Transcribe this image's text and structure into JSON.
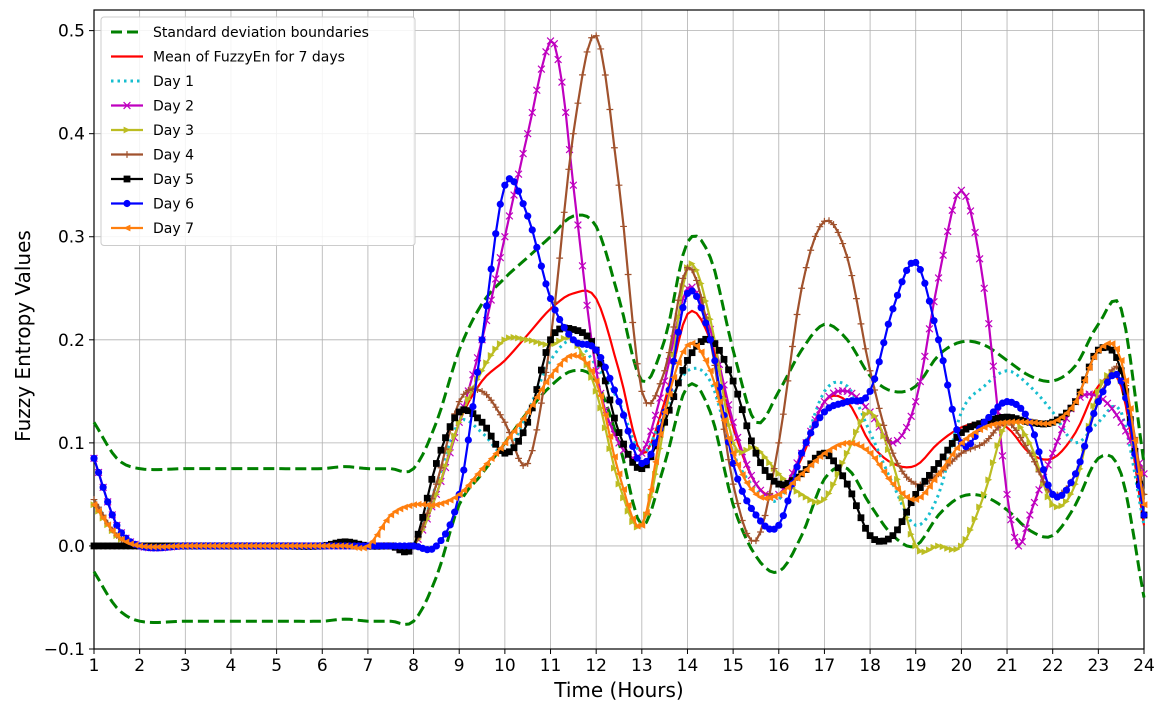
{
  "chart_data": {
    "type": "line",
    "title": "",
    "xlabel": "Time (Hours)",
    "ylabel": "Fuzzy Entropy Values",
    "xlim": [
      1,
      24
    ],
    "ylim": [
      -0.1,
      0.52
    ],
    "x_ticks": [
      1,
      2,
      3,
      4,
      5,
      6,
      7,
      8,
      9,
      10,
      11,
      12,
      13,
      14,
      15,
      16,
      17,
      18,
      19,
      20,
      21,
      22,
      23,
      24
    ],
    "y_ticks": [
      -0.1,
      0.0,
      0.1,
      0.2,
      0.3,
      0.4,
      0.5
    ],
    "y_tick_labels": [
      "−0.1",
      "0.0",
      "0.1",
      "0.2",
      "0.3",
      "0.4",
      "0.5"
    ],
    "grid": true,
    "legend_position": "top-left",
    "series": [
      {
        "name": "Standard deviation boundaries",
        "color": "#008000",
        "style": "dashed",
        "marker": "none",
        "x": [
          1,
          1.5,
          2,
          3,
          4,
          5,
          6,
          6.5,
          7,
          7.5,
          8,
          8.5,
          9,
          9.5,
          10,
          10.5,
          11,
          11.5,
          12,
          12.5,
          13,
          13.5,
          14,
          14.5,
          15,
          15.5,
          16,
          16.5,
          17,
          17.5,
          18,
          18.5,
          19,
          19.5,
          20,
          20.5,
          21,
          21.5,
          22,
          22.5,
          23,
          23.5,
          24
        ],
        "y": [
          0.12,
          0.085,
          0.075,
          0.075,
          0.075,
          0.075,
          0.075,
          0.077,
          0.075,
          0.075,
          0.075,
          0.12,
          0.19,
          0.235,
          0.26,
          0.28,
          0.3,
          0.32,
          0.31,
          0.24,
          0.16,
          0.2,
          0.295,
          0.28,
          0.19,
          0.12,
          0.15,
          0.19,
          0.215,
          0.2,
          0.165,
          0.15,
          0.155,
          0.185,
          0.198,
          0.195,
          0.18,
          0.165,
          0.16,
          0.175,
          0.215,
          0.23,
          0.08
        ]
      },
      {
        "name": "",
        "color": "#008000",
        "style": "dashed",
        "marker": "none",
        "x": [
          1,
          1.5,
          2,
          3,
          4,
          5,
          6,
          6.5,
          7,
          7.5,
          8,
          8.5,
          9,
          9.5,
          10,
          10.5,
          11,
          11.5,
          12,
          12.5,
          13,
          13.5,
          14,
          14.5,
          15,
          15.5,
          16,
          16.5,
          17,
          17.5,
          18,
          18.5,
          19,
          19.5,
          20,
          20.5,
          21,
          21.5,
          22,
          22.5,
          23,
          23.5,
          24
        ],
        "y": [
          -0.025,
          -0.06,
          -0.073,
          -0.073,
          -0.073,
          -0.073,
          -0.073,
          -0.071,
          -0.073,
          -0.073,
          -0.073,
          -0.03,
          0.04,
          0.07,
          0.1,
          0.13,
          0.155,
          0.17,
          0.16,
          0.1,
          0.02,
          0.08,
          0.155,
          0.13,
          0.04,
          -0.01,
          -0.025,
          0.01,
          0.065,
          0.075,
          0.04,
          0.01,
          0.0,
          0.03,
          0.048,
          0.048,
          0.035,
          0.015,
          0.01,
          0.04,
          0.085,
          0.07,
          -0.05
        ]
      },
      {
        "name": "Mean of FuzzyEn for 7 days",
        "color": "#ff0000",
        "style": "solid",
        "marker": "none",
        "x": [
          1,
          1.5,
          2,
          3,
          4,
          5,
          6,
          6.5,
          7,
          7.5,
          8,
          8.5,
          9,
          9.5,
          10,
          10.5,
          11,
          11.5,
          12,
          12.5,
          13,
          13.5,
          14,
          14.5,
          15,
          15.5,
          16,
          16.5,
          17,
          17.5,
          18,
          18.5,
          19,
          19.5,
          20,
          20.5,
          21,
          21.5,
          22,
          22.5,
          23,
          23.5,
          24
        ],
        "y": [
          0.045,
          0.01,
          0.0,
          0.0,
          0.0,
          0.0,
          0.0,
          0.002,
          0.0,
          0.0,
          0.0,
          0.05,
          0.12,
          0.16,
          0.18,
          0.205,
          0.23,
          0.245,
          0.24,
          0.17,
          0.09,
          0.14,
          0.225,
          0.2,
          0.115,
          0.06,
          0.05,
          0.085,
          0.14,
          0.14,
          0.1,
          0.08,
          0.078,
          0.1,
          0.115,
          0.12,
          0.115,
          0.09,
          0.085,
          0.11,
          0.155,
          0.155,
          0.02
        ]
      },
      {
        "name": "Day 1",
        "color": "#17becf",
        "style": "dotted",
        "marker": "none",
        "x": [
          1,
          1.5,
          2,
          3,
          4,
          5,
          6,
          6.5,
          7,
          7.5,
          8,
          8.5,
          9,
          9.5,
          10,
          10.5,
          11,
          11.5,
          12,
          12.5,
          13,
          13.5,
          14,
          14.5,
          15,
          15.5,
          16,
          16.5,
          17,
          17.5,
          18,
          18.5,
          19,
          19.5,
          20,
          20.5,
          21,
          21.5,
          22,
          22.5,
          23,
          23.5,
          24
        ],
        "y": [
          0.045,
          0.01,
          0.0,
          0.0,
          0.0,
          0.0,
          0.0,
          0.0,
          0.0,
          0.0,
          0.0,
          0.06,
          0.12,
          0.11,
          0.09,
          0.13,
          0.18,
          0.2,
          0.175,
          0.14,
          0.09,
          0.13,
          0.17,
          0.16,
          0.09,
          0.055,
          0.045,
          0.09,
          0.15,
          0.155,
          0.11,
          0.06,
          0.02,
          0.05,
          0.13,
          0.155,
          0.17,
          0.155,
          0.13,
          0.1,
          0.12,
          0.13,
          0.02
        ]
      },
      {
        "name": "Day 2",
        "color": "#bf00bf",
        "style": "solid",
        "marker": "x",
        "x": [
          1,
          1.5,
          2,
          3,
          4,
          5,
          6,
          6.5,
          7,
          7.5,
          8,
          8.5,
          9,
          9.5,
          10,
          10.5,
          11,
          11.25,
          11.5,
          12,
          12.5,
          13,
          13.5,
          14,
          14.5,
          15,
          15.5,
          16,
          16.5,
          17,
          17.5,
          18,
          18.5,
          19,
          19.5,
          20,
          20.5,
          21,
          21.25,
          21.5,
          22,
          22.5,
          23,
          23.5,
          24
        ],
        "y": [
          0.085,
          0.02,
          0.0,
          0.0,
          0.0,
          0.0,
          0.0,
          0.0,
          0.0,
          0.0,
          0.0,
          0.05,
          0.12,
          0.2,
          0.3,
          0.4,
          0.49,
          0.45,
          0.35,
          0.17,
          0.1,
          0.09,
          0.16,
          0.25,
          0.21,
          0.12,
          0.06,
          0.05,
          0.09,
          0.14,
          0.15,
          0.13,
          0.1,
          0.14,
          0.26,
          0.345,
          0.25,
          0.05,
          0.0,
          0.03,
          0.09,
          0.14,
          0.145,
          0.12,
          0.07
        ]
      },
      {
        "name": "Day 3",
        "color": "#bcbd22",
        "style": "solid",
        "marker": "triangle-right",
        "x": [
          1,
          1.5,
          2,
          3,
          4,
          5,
          6,
          6.5,
          7,
          7.5,
          8,
          8.5,
          9,
          9.5,
          10,
          10.5,
          11,
          11.5,
          12,
          12.5,
          13,
          13.5,
          14,
          14.5,
          15,
          15.5,
          16,
          16.5,
          17,
          17.5,
          18,
          18.5,
          19,
          19.5,
          20,
          20.5,
          21,
          21.5,
          22,
          22.5,
          23,
          23.5,
          24
        ],
        "y": [
          0.04,
          0.01,
          0.0,
          0.0,
          0.0,
          0.0,
          0.0,
          0.0,
          0.0,
          0.0,
          0.0,
          0.05,
          0.12,
          0.17,
          0.2,
          0.2,
          0.195,
          0.2,
          0.15,
          0.06,
          0.02,
          0.12,
          0.27,
          0.22,
          0.1,
          0.095,
          0.07,
          0.05,
          0.045,
          0.09,
          0.13,
          0.08,
          0.0,
          0.0,
          0.0,
          0.05,
          0.12,
          0.1,
          0.04,
          0.06,
          0.15,
          0.16,
          0.05
        ]
      },
      {
        "name": "Day 4",
        "color": "#a0522d",
        "style": "solid",
        "marker": "plus",
        "x": [
          1,
          1.5,
          2,
          3,
          4,
          5,
          6,
          6.5,
          7,
          7.5,
          8,
          8.5,
          9,
          9.5,
          10,
          10.5,
          11,
          11.5,
          12,
          12.5,
          13,
          13.5,
          14,
          14.5,
          15,
          15.5,
          16,
          16.5,
          17,
          17.5,
          18,
          18.5,
          19,
          19.5,
          20,
          20.5,
          21,
          21.5,
          22,
          22.5,
          23,
          23.5,
          24
        ],
        "y": [
          0.045,
          0.01,
          0.0,
          0.0,
          0.0,
          0.0,
          0.0,
          0.0,
          0.0,
          0.0,
          0.0,
          0.06,
          0.14,
          0.15,
          0.12,
          0.08,
          0.2,
          0.4,
          0.495,
          0.35,
          0.15,
          0.17,
          0.27,
          0.2,
          0.06,
          0.005,
          0.1,
          0.25,
          0.315,
          0.28,
          0.17,
          0.09,
          0.06,
          0.07,
          0.09,
          0.1,
          0.12,
          0.09,
          0.05,
          0.07,
          0.14,
          0.17,
          0.05
        ]
      },
      {
        "name": "Day 5",
        "color": "#000000",
        "style": "solid",
        "marker": "square",
        "x": [
          1,
          1.5,
          2,
          3,
          4,
          5,
          6,
          6.5,
          7,
          7.5,
          8,
          8.5,
          9,
          9.5,
          10,
          10.5,
          11,
          11.5,
          12,
          12.5,
          13,
          13.5,
          14,
          14.5,
          15,
          15.5,
          16,
          16.5,
          17,
          17.5,
          18,
          18.5,
          19,
          19.5,
          20,
          20.5,
          21,
          21.5,
          22,
          22.5,
          23,
          23.5,
          24
        ],
        "y": [
          0.0,
          0.0,
          0.0,
          0.0,
          0.0,
          0.0,
          0.0,
          0.004,
          0.0,
          0.0,
          0.0,
          0.08,
          0.13,
          0.12,
          0.09,
          0.12,
          0.2,
          0.21,
          0.19,
          0.11,
          0.075,
          0.12,
          0.18,
          0.2,
          0.16,
          0.09,
          0.06,
          0.07,
          0.09,
          0.06,
          0.01,
          0.01,
          0.05,
          0.08,
          0.11,
          0.12,
          0.125,
          0.12,
          0.12,
          0.14,
          0.19,
          0.17,
          0.03
        ]
      },
      {
        "name": "Day 6",
        "color": "#0000ff",
        "style": "solid",
        "marker": "circle",
        "x": [
          1,
          1.5,
          2,
          3,
          4,
          5,
          6,
          6.5,
          7,
          7.5,
          8,
          8.5,
          9,
          9.5,
          10,
          10.5,
          11,
          11.5,
          12,
          12.5,
          13,
          13.5,
          14,
          14.5,
          15,
          15.5,
          16,
          16.5,
          17,
          17.5,
          18,
          18.5,
          19,
          19.5,
          20,
          20.5,
          21,
          21.5,
          22,
          22.5,
          23,
          23.5,
          24
        ],
        "y": [
          0.085,
          0.02,
          0.0,
          0.0,
          0.0,
          0.0,
          0.0,
          0.0,
          0.0,
          0.0,
          0.0,
          0.0,
          0.05,
          0.2,
          0.35,
          0.32,
          0.24,
          0.2,
          0.19,
          0.14,
          0.08,
          0.13,
          0.245,
          0.2,
          0.08,
          0.03,
          0.02,
          0.09,
          0.13,
          0.14,
          0.15,
          0.23,
          0.275,
          0.2,
          0.1,
          0.12,
          0.14,
          0.12,
          0.05,
          0.07,
          0.14,
          0.16,
          0.03
        ]
      },
      {
        "name": "Day 7",
        "color": "#ff7f0e",
        "style": "solid",
        "marker": "triangle-left",
        "x": [
          1,
          1.5,
          2,
          3,
          4,
          5,
          6,
          6.5,
          7,
          7.5,
          8,
          8.5,
          9,
          9.5,
          10,
          10.5,
          11,
          11.5,
          12,
          12.5,
          13,
          13.5,
          14,
          14.5,
          15,
          15.5,
          16,
          16.5,
          17,
          17.5,
          18,
          18.5,
          19,
          19.5,
          20,
          20.5,
          21,
          21.5,
          22,
          22.5,
          23,
          23.5,
          24
        ],
        "y": [
          0.04,
          0.01,
          0.0,
          0.0,
          0.0,
          0.0,
          0.0,
          0.0,
          0.0,
          0.03,
          0.04,
          0.04,
          0.05,
          0.075,
          0.1,
          0.13,
          0.165,
          0.185,
          0.16,
          0.07,
          0.02,
          0.13,
          0.195,
          0.17,
          0.09,
          0.05,
          0.05,
          0.07,
          0.09,
          0.1,
          0.09,
          0.06,
          0.045,
          0.07,
          0.1,
          0.115,
          0.12,
          0.12,
          0.12,
          0.14,
          0.19,
          0.18,
          0.04
        ]
      }
    ]
  }
}
